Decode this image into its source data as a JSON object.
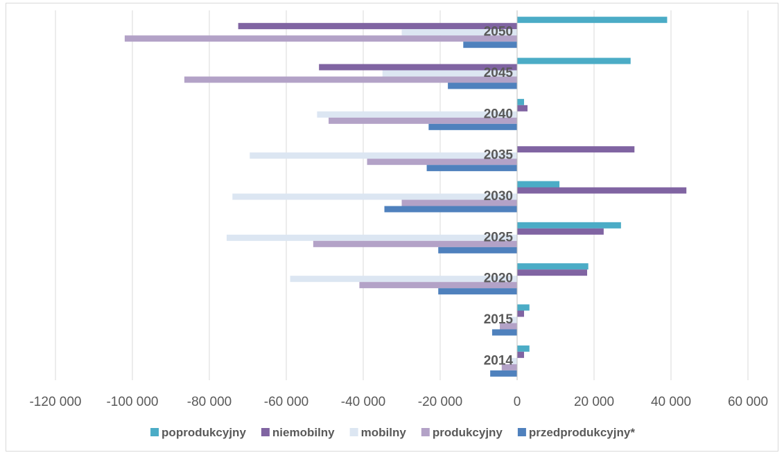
{
  "chart_data": {
    "type": "bar",
    "orientation": "horizontal",
    "categories": [
      "2014",
      "2015",
      "2020",
      "2025",
      "2030",
      "2035",
      "2040",
      "2045",
      "2050"
    ],
    "xlim": [
      -120000,
      60000
    ],
    "xticks": [
      -120000,
      -100000,
      -80000,
      -60000,
      -40000,
      -20000,
      0,
      20000,
      40000,
      60000
    ],
    "xtick_labels": [
      "-120 000",
      "-100 000",
      "-80 000",
      "-60 000",
      "-40 000",
      "-20 000",
      "0",
      "20 000",
      "40 000",
      "60 000"
    ],
    "grid": true,
    "legend_position": "bottom",
    "series": [
      {
        "name": "poprodukcyjny",
        "color": "#4bacc6",
        "values": [
          3200,
          3200,
          18500,
          27000,
          11000,
          0,
          1800,
          29500,
          39000
        ]
      },
      {
        "name": "niemobilny",
        "color": "#8064a2",
        "values": [
          1800,
          1800,
          18200,
          22500,
          44000,
          30500,
          2700,
          -51500,
          -72500
        ]
      },
      {
        "name": "mobilny",
        "color": "#dce6f2",
        "values": [
          -2000,
          -2200,
          -59000,
          -75500,
          -74000,
          -69500,
          -52000,
          -35000,
          -30000
        ]
      },
      {
        "name": "produkcyjny",
        "color": "#b3a2c7",
        "values": [
          -4000,
          -4500,
          -41000,
          -53000,
          -30000,
          -39000,
          -49000,
          -86500,
          -102000
        ]
      },
      {
        "name": "przedprodukcyjny*",
        "color": "#4f81bd",
        "values": [
          -7000,
          -6500,
          -20500,
          -20500,
          -34500,
          -23500,
          -23000,
          -18000,
          -14000
        ]
      }
    ]
  }
}
